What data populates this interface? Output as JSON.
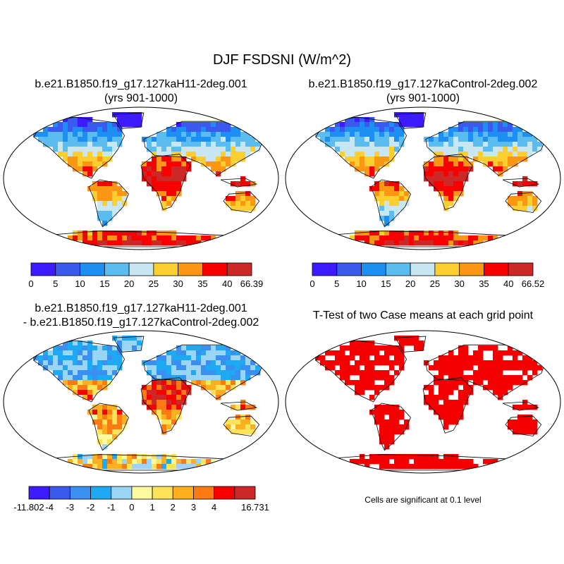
{
  "title": "DJF FSDSNI (W/m^2)",
  "panels": [
    {
      "id": "p1",
      "title_lines": [
        "b.e21.B1850.f19_g17.127kaH11-2deg.001",
        "(yrs 901-1000)"
      ],
      "kind": "field",
      "colorbar": {
        "labels": [
          "0",
          "5",
          "10",
          "15",
          "20",
          "25",
          "30",
          "35",
          "40",
          "66.39"
        ],
        "colors": [
          "#3d1aff",
          "#3a5aee",
          "#1e8ff2",
          "#5bbcf0",
          "#c9e6f3",
          "#fbcf2f",
          "#fb9712",
          "#f90000",
          "#cc2828"
        ]
      }
    },
    {
      "id": "p2",
      "title_lines": [
        "b.e21.B1850.f19_g17.127kaControl-2deg.002",
        "(yrs 901-1000)"
      ],
      "kind": "field",
      "colorbar": {
        "labels": [
          "0",
          "5",
          "10",
          "15",
          "20",
          "25",
          "30",
          "35",
          "40",
          "66.52"
        ],
        "colors": [
          "#3d1aff",
          "#3a5aee",
          "#1e8ff2",
          "#5bbcf0",
          "#c9e6f3",
          "#fbcf2f",
          "#fb9712",
          "#f90000",
          "#cc2828"
        ]
      }
    },
    {
      "id": "p3",
      "title_lines": [
        "b.e21.B1850.f19_g17.127kaH11-2deg.001",
        "- b.e21.B1850.f19_g17.127kaControl-2deg.002"
      ],
      "kind": "difference",
      "colorbar": {
        "labels": [
          "-11.802",
          "-4",
          "-3",
          "-2",
          "-1",
          "0",
          "1",
          "2",
          "3",
          "4",
          "16.731"
        ],
        "colors": [
          "#3d1aff",
          "#3a5aee",
          "#3a8ff0",
          "#1eaaf2",
          "#9ad6f3",
          "#fffaa0",
          "#fde35a",
          "#fcb020",
          "#fb7a12",
          "#f90000",
          "#cc2828"
        ]
      }
    },
    {
      "id": "p4",
      "title_lines": [
        "T-Test of two Case means at each grid point"
      ],
      "kind": "significance",
      "color": "#f40000"
    }
  ],
  "note": "Cells are significant at 0.1 level"
}
